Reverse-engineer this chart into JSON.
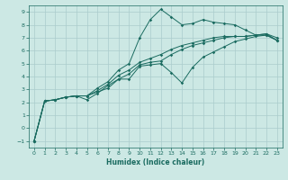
{
  "bg_color": "#cce8e4",
  "grid_color": "#aacccc",
  "line_color": "#1a6b60",
  "xlabel": "Humidex (Indice chaleur)",
  "xlim": [
    -0.5,
    23.5
  ],
  "ylim": [
    -1.5,
    9.5
  ],
  "xticks": [
    0,
    1,
    2,
    3,
    4,
    5,
    6,
    7,
    8,
    9,
    10,
    11,
    12,
    13,
    14,
    15,
    16,
    17,
    18,
    19,
    20,
    21,
    22,
    23
  ],
  "yticks": [
    -1,
    0,
    1,
    2,
    3,
    4,
    5,
    6,
    7,
    8,
    9
  ],
  "x": [
    0,
    1,
    2,
    3,
    4,
    5,
    6,
    7,
    8,
    9,
    10,
    11,
    12,
    13,
    14,
    15,
    16,
    17,
    18,
    19,
    20,
    21,
    22,
    23
  ],
  "line1_y": [
    -1.0,
    2.1,
    2.2,
    2.4,
    2.5,
    2.5,
    3.1,
    3.6,
    4.5,
    5.0,
    7.0,
    8.4,
    9.2,
    8.6,
    8.0,
    8.1,
    8.4,
    8.2,
    8.1,
    8.0,
    7.6,
    7.2,
    7.3,
    7.0
  ],
  "line2_y": [
    -1.0,
    2.1,
    2.2,
    2.4,
    2.5,
    2.2,
    2.7,
    3.3,
    3.8,
    3.8,
    4.8,
    4.9,
    5.0,
    4.3,
    3.5,
    4.7,
    5.5,
    5.9,
    6.3,
    6.7,
    6.9,
    7.1,
    7.2,
    6.8
  ],
  "line3_y": [
    -1.0,
    2.1,
    2.2,
    2.4,
    2.5,
    2.5,
    2.8,
    3.1,
    3.8,
    4.2,
    4.9,
    5.1,
    5.2,
    5.7,
    6.1,
    6.4,
    6.6,
    6.8,
    7.0,
    7.1,
    7.1,
    7.2,
    7.3,
    6.8
  ],
  "line4_y": [
    -1.0,
    2.1,
    2.2,
    2.4,
    2.5,
    2.5,
    2.9,
    3.4,
    4.1,
    4.5,
    5.1,
    5.4,
    5.7,
    6.1,
    6.4,
    6.6,
    6.8,
    7.0,
    7.1,
    7.1,
    7.1,
    7.2,
    7.2,
    6.8
  ]
}
